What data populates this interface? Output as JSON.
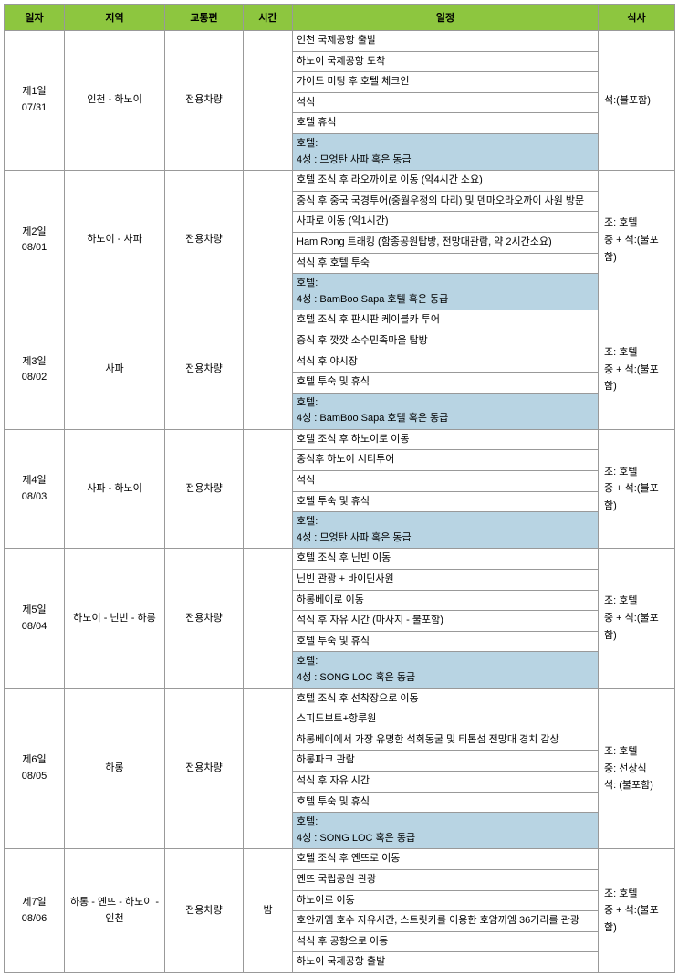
{
  "headers": {
    "date": "일자",
    "region": "지역",
    "transport": "교통편",
    "time": "시간",
    "itinerary": "일정",
    "meal": "식사"
  },
  "days": [
    {
      "day_label": "제1일",
      "date": "07/31",
      "region": "인천 - 하노이",
      "transport": "전용차량",
      "time": "",
      "itinerary": [
        "인천 국제공항 출발",
        "하노이 국제공항 도착",
        "가이드 미팅 후 호텔 체크인",
        "석식",
        " 호텔 휴식"
      ],
      "hotel_label": "호텔:",
      "hotel_info": "4성 : 므엉탄 사파 혹은 동급",
      "meal": "석:(불포함)"
    },
    {
      "day_label": "제2일",
      "date": "08/01",
      "region": "하노이 - 사파",
      "transport": "전용차량",
      "time": "",
      "itinerary": [
        "호텔 조식 후 라오까이로 이동 (약4시간 소요)",
        "중식 후 중국 국경투어(중월우정의 다리) 및 덴마오라오까이 사원 방문",
        "사파로 이동 (약1시간)",
        " Ham Rong 트래킹 (함종공원탑방, 전망대관람, 약 2시간소요)",
        "석식 후 호텔 투숙"
      ],
      "hotel_label": "호텔:",
      "hotel_info": "4성 : BamBoo Sapa 호텔 혹은 동급",
      "meal": "조: 호텔\n중 + 석:(불포함)"
    },
    {
      "day_label": "제3일",
      "date": "08/02",
      "region": "사파",
      "transport": "전용차량",
      "time": "",
      "itinerary": [
        "호텔 조식 후 판시판 케이블카 투어",
        "중식 후 깟깟 소수민족마을 탑방",
        "석식 후 야시장",
        "호텔 투숙 및 휴식"
      ],
      "hotel_label": "호텔:",
      "hotel_info": "4성 : BamBoo Sapa 호텔 혹은 동급",
      "meal": "조: 호텔\n중 + 석:(불포함)"
    },
    {
      "day_label": "제4일",
      "date": "08/03",
      "region": "사파 - 하노이",
      "transport": "전용차량",
      "time": "",
      "itinerary": [
        "호텔 조식 후 하노이로 이동",
        "중식후 하노이 시티투어",
        "석식",
        "호텔 투숙 및 휴식"
      ],
      "hotel_label": "호텔:",
      "hotel_info": "4성 : 므엉탄 사파 혹은 동급",
      "meal": "조: 호텔\n중 + 석:(불포함)"
    },
    {
      "day_label": "제5일",
      "date": "08/04",
      "region": "하노이 - 닌빈 - 하롱",
      "transport": "전용차량",
      "time": "",
      "itinerary": [
        "호텔 조식 후 닌빈 이동",
        "닌빈 관광 + 바이딘사원",
        "하롱베이로 이동",
        "석식 후 자유 시간 (마사지 - 불포함)",
        "호텔 투숙 및 휴식"
      ],
      "hotel_label": "호텔:",
      "hotel_info": "4성 : SONG LOC 혹은 동급",
      "meal": "조: 호텔\n중 + 석:(불포함)"
    },
    {
      "day_label": "제6일",
      "date": "08/05",
      "region": "하롱",
      "transport": "전용차량",
      "time": "",
      "itinerary": [
        "호텔 조식 후 선착장으로 이동",
        "스피드보트+항루원",
        "하롱베이에서 가장 유명한 석회동굴 및 티톱섬 전망대 경치 감상",
        "하롱파크 관람",
        "석식 후 자유 시간",
        "호텔 투숙 및 휴식"
      ],
      "hotel_label": "호텔:",
      "hotel_info": "4성 : SONG LOC 혹은 동급",
      "meal": "조: 호텔\n중: 선상식\n석: (불포함)"
    },
    {
      "day_label": "제7일",
      "date": "08/06",
      "region": "하롱 - 옌뜨 - 하노이 - 인천",
      "transport": "전용차량",
      "time": "밤",
      "itinerary": [
        "호텔 조식 후 옌뜨로 이동",
        "옌뜨 국립공원 관광",
        "하노이로 이동",
        "호안끼엠 호수 자유시간, 스트릿카를 이용한 호암끼엠 36거리를 관광",
        "석식 후 공항으로 이동",
        "하노이 국제공항 출발"
      ],
      "hotel_label": "",
      "hotel_info": "",
      "meal": "조: 호텔\n중 + 석:(불포함)"
    }
  ],
  "colors": {
    "header_bg": "#8dc63f",
    "hotel_bg": "#b8d4e3",
    "border": "#999999",
    "dotted": "#cccccc"
  }
}
